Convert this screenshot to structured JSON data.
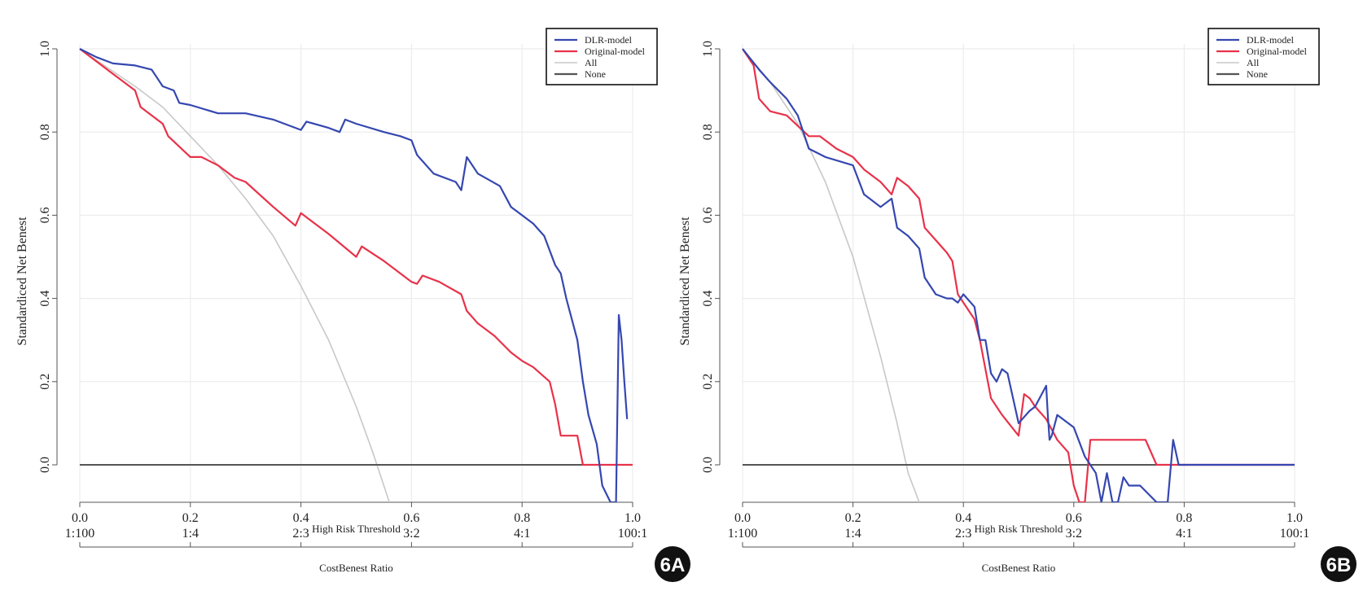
{
  "chart_data": [
    {
      "type": "line",
      "panel_label": "6A",
      "xlabel": "High Risk Threshold",
      "ylabel": "Standardiced Net Benest",
      "ratio_label": "CostBenest Ratio",
      "xlim": [
        0,
        1
      ],
      "ylim": [
        -0.09,
        1.0
      ],
      "x_ticks": [
        "0.0",
        "0.2",
        "0.4",
        "0.6",
        "0.8",
        "1.0"
      ],
      "y_ticks": [
        "0.0",
        "0.2",
        "0.4",
        "0.6",
        "0.8",
        "1.0"
      ],
      "ratio_ticks": [
        "1:100",
        "1:4",
        "2:3",
        "3:2",
        "4:1",
        "100:1"
      ],
      "legend": [
        "DLR-model",
        "Original-model",
        "All",
        "None"
      ],
      "series": [
        {
          "name": "DLR-model",
          "color": "#3547b0",
          "x": [
            0,
            0.03,
            0.06,
            0.1,
            0.13,
            0.14,
            0.15,
            0.17,
            0.18,
            0.2,
            0.25,
            0.3,
            0.35,
            0.4,
            0.41,
            0.45,
            0.47,
            0.48,
            0.5,
            0.55,
            0.58,
            0.6,
            0.61,
            0.62,
            0.64,
            0.68,
            0.69,
            0.7,
            0.72,
            0.76,
            0.78,
            0.82,
            0.84,
            0.86,
            0.87,
            0.88,
            0.9,
            0.91,
            0.92,
            0.935,
            0.945,
            0.96,
            0.97,
            0.975,
            0.98,
            0.985,
            0.99
          ],
          "y": [
            1.0,
            0.98,
            0.965,
            0.96,
            0.95,
            0.93,
            0.91,
            0.9,
            0.87,
            0.865,
            0.845,
            0.845,
            0.83,
            0.805,
            0.825,
            0.81,
            0.8,
            0.83,
            0.82,
            0.8,
            0.79,
            0.78,
            0.745,
            0.73,
            0.7,
            0.68,
            0.66,
            0.74,
            0.7,
            0.67,
            0.62,
            0.58,
            0.55,
            0.48,
            0.46,
            0.4,
            0.3,
            0.2,
            0.12,
            0.05,
            -0.05,
            -0.09,
            -0.09,
            0.36,
            0.3,
            0.2,
            0.11
          ]
        },
        {
          "name": "Original-model",
          "color": "#e8324a",
          "x": [
            0,
            0.05,
            0.1,
            0.11,
            0.15,
            0.16,
            0.2,
            0.22,
            0.25,
            0.28,
            0.3,
            0.35,
            0.39,
            0.4,
            0.45,
            0.5,
            0.51,
            0.55,
            0.6,
            0.61,
            0.62,
            0.65,
            0.69,
            0.7,
            0.72,
            0.75,
            0.78,
            0.8,
            0.82,
            0.85,
            0.86,
            0.87,
            0.9,
            0.91,
            0.93,
            1.0
          ],
          "y": [
            1.0,
            0.95,
            0.9,
            0.86,
            0.82,
            0.79,
            0.74,
            0.74,
            0.72,
            0.69,
            0.68,
            0.62,
            0.575,
            0.605,
            0.555,
            0.5,
            0.525,
            0.49,
            0.44,
            0.435,
            0.455,
            0.44,
            0.41,
            0.37,
            0.34,
            0.31,
            0.27,
            0.25,
            0.235,
            0.2,
            0.145,
            0.07,
            0.07,
            0.0,
            0.0,
            0.0
          ]
        },
        {
          "name": "All",
          "color": "#c8c8c8",
          "x": [
            0,
            0.05,
            0.1,
            0.15,
            0.2,
            0.25,
            0.3,
            0.35,
            0.4,
            0.45,
            0.5,
            0.53,
            0.56
          ],
          "y": [
            1.0,
            0.955,
            0.91,
            0.86,
            0.79,
            0.72,
            0.64,
            0.55,
            0.43,
            0.3,
            0.14,
            0.03,
            -0.09
          ]
        },
        {
          "name": "None",
          "color": "#555555",
          "x": [
            0,
            1.0
          ],
          "y": [
            0.0,
            0.0
          ]
        }
      ]
    },
    {
      "type": "line",
      "panel_label": "6B",
      "xlabel": "High Risk Threshold",
      "ylabel": "Standardiced Net Benest",
      "ratio_label": "CostBenest Ratio",
      "xlim": [
        0,
        1
      ],
      "ylim": [
        -0.09,
        1.0
      ],
      "x_ticks": [
        "0.0",
        "0.2",
        "0.4",
        "0.6",
        "0.8",
        "1.0"
      ],
      "y_ticks": [
        "0.0",
        "0.2",
        "0.4",
        "0.6",
        "0.8",
        "1.0"
      ],
      "ratio_ticks": [
        "1:100",
        "1:4",
        "2:3",
        "3:2",
        "4:1",
        "100:1"
      ],
      "legend": [
        "DLR-model",
        "Original-model",
        "All",
        "None"
      ],
      "series": [
        {
          "name": "DLR-model",
          "color": "#3547b0",
          "x": [
            0,
            0.03,
            0.05,
            0.08,
            0.1,
            0.12,
            0.15,
            0.2,
            0.22,
            0.25,
            0.27,
            0.28,
            0.3,
            0.32,
            0.33,
            0.35,
            0.37,
            0.38,
            0.39,
            0.4,
            0.42,
            0.43,
            0.44,
            0.45,
            0.46,
            0.47,
            0.48,
            0.5,
            0.52,
            0.53,
            0.55,
            0.553,
            0.556,
            0.56,
            0.57,
            0.59,
            0.6,
            0.62,
            0.63,
            0.64,
            0.65,
            0.66,
            0.67,
            0.68,
            0.69,
            0.7,
            0.72,
            0.75,
            0.77,
            0.78,
            0.79,
            0.8,
            1.0
          ],
          "y": [
            1.0,
            0.95,
            0.92,
            0.88,
            0.84,
            0.76,
            0.74,
            0.72,
            0.65,
            0.62,
            0.64,
            0.57,
            0.55,
            0.52,
            0.45,
            0.41,
            0.4,
            0.4,
            0.39,
            0.41,
            0.38,
            0.3,
            0.3,
            0.22,
            0.2,
            0.23,
            0.22,
            0.1,
            0.13,
            0.14,
            0.19,
            0.12,
            0.06,
            0.07,
            0.12,
            0.1,
            0.09,
            0.02,
            0.0,
            -0.02,
            -0.09,
            -0.02,
            -0.09,
            -0.09,
            -0.03,
            -0.05,
            -0.05,
            -0.09,
            -0.09,
            0.06,
            0.0,
            0.0,
            0.0
          ]
        },
        {
          "name": "Original-model",
          "color": "#e8324a",
          "x": [
            0,
            0.02,
            0.03,
            0.05,
            0.08,
            0.12,
            0.14,
            0.17,
            0.2,
            0.22,
            0.25,
            0.27,
            0.28,
            0.3,
            0.32,
            0.33,
            0.37,
            0.38,
            0.39,
            0.42,
            0.43,
            0.45,
            0.47,
            0.5,
            0.51,
            0.52,
            0.53,
            0.55,
            0.57,
            0.59,
            0.6,
            0.61,
            0.62,
            0.63,
            0.7,
            0.73,
            0.75,
            1.0
          ],
          "y": [
            1.0,
            0.96,
            0.88,
            0.85,
            0.84,
            0.79,
            0.79,
            0.76,
            0.74,
            0.71,
            0.68,
            0.65,
            0.69,
            0.67,
            0.64,
            0.57,
            0.51,
            0.49,
            0.41,
            0.35,
            0.3,
            0.16,
            0.12,
            0.07,
            0.17,
            0.16,
            0.14,
            0.11,
            0.06,
            0.03,
            -0.05,
            -0.09,
            -0.09,
            0.06,
            0.06,
            0.06,
            0.0,
            0.0
          ]
        },
        {
          "name": "All",
          "color": "#c8c8c8",
          "x": [
            0,
            0.05,
            0.1,
            0.15,
            0.2,
            0.25,
            0.28,
            0.3,
            0.32
          ],
          "y": [
            1.0,
            0.92,
            0.82,
            0.68,
            0.5,
            0.26,
            0.1,
            -0.02,
            -0.09
          ]
        },
        {
          "name": "None",
          "color": "#555555",
          "x": [
            0,
            1.0
          ],
          "y": [
            0.0,
            0.0
          ]
        }
      ]
    }
  ]
}
